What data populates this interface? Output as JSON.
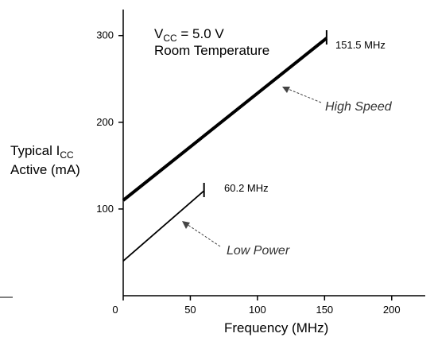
{
  "chart_data": {
    "type": "line",
    "x": {
      "label": "Frequency (MHz)",
      "ticks": [
        0,
        50,
        100,
        150,
        200
      ],
      "range": [
        0,
        225
      ]
    },
    "y": {
      "label_line1": "Typical I",
      "label_sub": "CC",
      "label_line2": "Active (mA)",
      "ticks": [
        100,
        200,
        300
      ],
      "range": [
        0,
        330
      ]
    },
    "conditions": {
      "vcc_prefix": "V",
      "vcc_sub": "CC",
      "vcc_value": " = 5.0 V",
      "temperature": "Room Temperature"
    },
    "series": [
      {
        "name": "High Speed",
        "points": [
          [
            0,
            110
          ],
          [
            151.5,
            297
          ]
        ],
        "end_label": "151.5 MHz",
        "color": "#000000",
        "width": "thick"
      },
      {
        "name": "Low Power",
        "points": [
          [
            0,
            40
          ],
          [
            60.2,
            121
          ]
        ],
        "end_label": "60.2 MHz",
        "color": "#000000",
        "width": "thin"
      }
    ]
  }
}
